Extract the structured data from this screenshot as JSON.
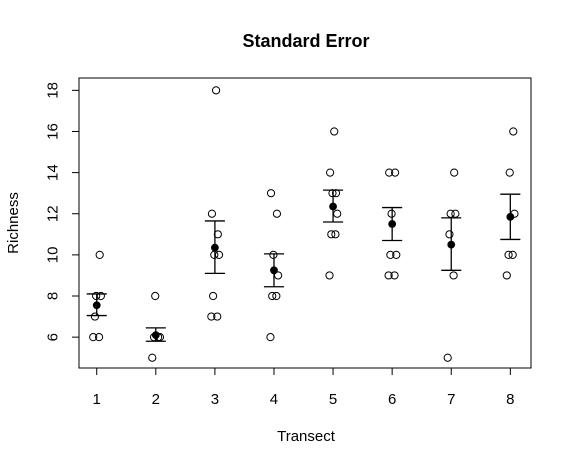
{
  "chart_data": {
    "type": "scatter",
    "title": "Standard Error",
    "xlabel": "Transect",
    "ylabel": "Richness",
    "xlim": [
      0.7,
      8.35
    ],
    "ylim": [
      4.5,
      18.6
    ],
    "x_ticks": [
      "1",
      "2",
      "3",
      "4",
      "5",
      "6",
      "7",
      "8"
    ],
    "y_ticks": [
      "6",
      "8",
      "10",
      "12",
      "14",
      "16",
      "18"
    ],
    "grid": false,
    "legend": "none",
    "observations": [
      {
        "transect": 1,
        "values": [
          6,
          6,
          7,
          8,
          8,
          10
        ]
      },
      {
        "transect": 2,
        "values": [
          5,
          6,
          6,
          6,
          8
        ]
      },
      {
        "transect": 3,
        "values": [
          7,
          7,
          8,
          10,
          10,
          11,
          12,
          18
        ]
      },
      {
        "transect": 4,
        "values": [
          6,
          8,
          8,
          9,
          10,
          12,
          13
        ]
      },
      {
        "transect": 5,
        "values": [
          9,
          11,
          11,
          12,
          13,
          13,
          14,
          16
        ]
      },
      {
        "transect": 6,
        "values": [
          9,
          9,
          10,
          10,
          12,
          14,
          14
        ]
      },
      {
        "transect": 7,
        "values": [
          5,
          9,
          11,
          12,
          12,
          14
        ]
      },
      {
        "transect": 8,
        "values": [
          9,
          10,
          10,
          12,
          14,
          16
        ]
      }
    ],
    "means": [
      7.55,
      6.1,
      10.35,
      9.25,
      12.35,
      11.5,
      10.5,
      11.85
    ],
    "se_lower": [
      7.05,
      5.8,
      9.1,
      8.45,
      11.6,
      10.7,
      9.25,
      10.75
    ],
    "se_upper": [
      8.1,
      6.45,
      11.65,
      10.05,
      13.15,
      12.3,
      11.8,
      12.95
    ]
  }
}
